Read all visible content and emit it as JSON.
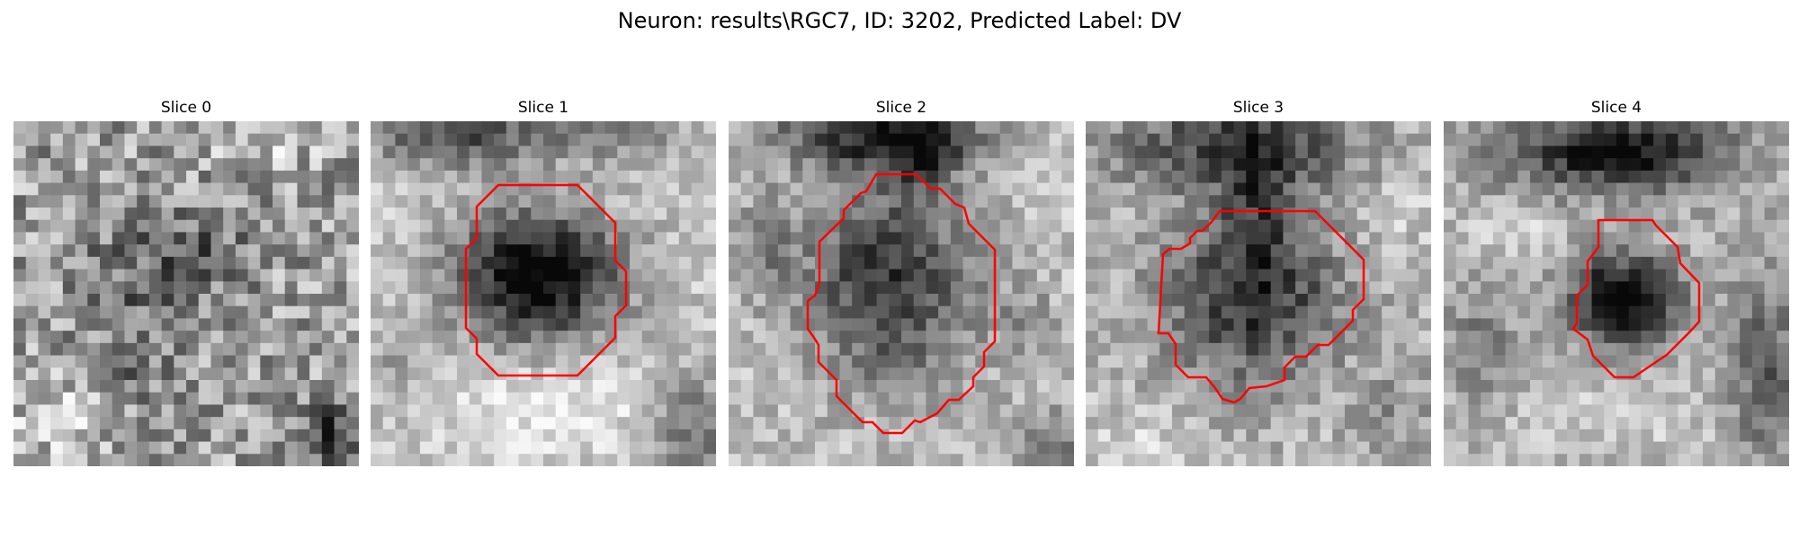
{
  "figure": {
    "title": "Neuron: results\\RGC7, ID: 3202, Predicted Label: DV"
  },
  "slices": [
    {
      "label": "Slice 0",
      "has_contour": false
    },
    {
      "label": "Slice 1",
      "has_contour": true
    },
    {
      "label": "Slice 2",
      "has_contour": true
    },
    {
      "label": "Slice 3",
      "has_contour": true
    },
    {
      "label": "Slice 4",
      "has_contour": true
    }
  ],
  "colors": {
    "contour": "#ff0000",
    "background": "#ffffff"
  }
}
